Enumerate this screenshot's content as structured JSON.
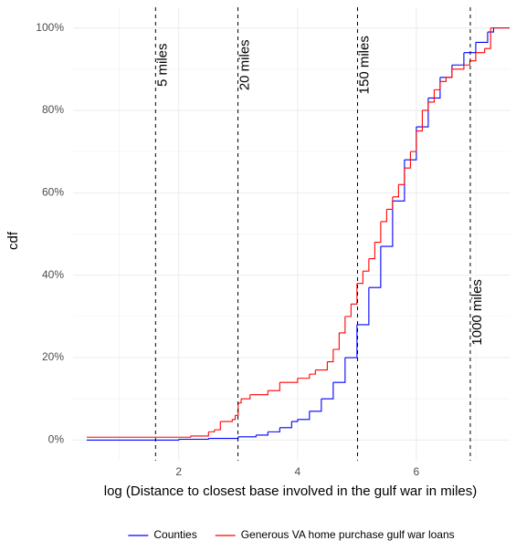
{
  "chart_data": {
    "type": "line",
    "step": true,
    "x_label": "log (Distance to closest base involved in the gulf war in miles)",
    "y_label": "cdf",
    "xlim": [
      0.22,
      7.57
    ],
    "ylim": [
      -0.05,
      1.05
    ],
    "xticks": [
      2,
      4,
      6
    ],
    "yticks": [
      {
        "value": 0,
        "label": "0%"
      },
      {
        "value": 0.2,
        "label": "20%"
      },
      {
        "value": 0.4,
        "label": "40%"
      },
      {
        "value": 0.6,
        "label": "60%"
      },
      {
        "value": 0.8,
        "label": "80%"
      },
      {
        "value": 1,
        "label": "100%"
      }
    ],
    "grid": true,
    "legend": "bottom",
    "annotations": [
      {
        "x": 1.609,
        "y": 0.91,
        "label": "5 miles"
      },
      {
        "x": 2.996,
        "y": 0.91,
        "label": "20 miles"
      },
      {
        "x": 5.01,
        "y": 0.91,
        "label": "150 miles"
      },
      {
        "x": 6.908,
        "y": 0.31,
        "label": "1000 miles"
      }
    ],
    "series": [
      {
        "name": "Counties",
        "color": "#0000ff",
        "x": [
          0.45,
          2.0,
          2.5,
          3.0,
          3.3,
          3.5,
          3.7,
          3.9,
          4.0,
          4.2,
          4.4,
          4.6,
          4.8,
          5.0,
          5.2,
          5.4,
          5.6,
          5.8,
          6.0,
          6.2,
          6.4,
          6.6,
          6.8,
          7.0,
          7.2,
          7.3,
          7.57
        ],
        "values": [
          0,
          0.002,
          0.004,
          0.008,
          0.012,
          0.02,
          0.03,
          0.045,
          0.05,
          0.07,
          0.1,
          0.14,
          0.2,
          0.28,
          0.37,
          0.47,
          0.58,
          0.68,
          0.76,
          0.83,
          0.88,
          0.91,
          0.94,
          0.965,
          0.99,
          1.0,
          1.0
        ]
      },
      {
        "name": "Generous VA home purchase gulf war loans",
        "color": "#ff0000",
        "x": [
          0.45,
          2.0,
          2.2,
          2.5,
          2.6,
          2.7,
          2.9,
          2.95,
          3.0,
          3.05,
          3.2,
          3.5,
          3.7,
          4.0,
          4.2,
          4.3,
          4.5,
          4.6,
          4.7,
          4.8,
          4.9,
          5.0,
          5.1,
          5.2,
          5.3,
          5.4,
          5.5,
          5.6,
          5.7,
          5.8,
          5.9,
          6.0,
          6.1,
          6.2,
          6.3,
          6.4,
          6.5,
          6.6,
          6.8,
          6.9,
          7.0,
          7.15,
          7.25,
          7.57
        ],
        "values": [
          0.007,
          0.007,
          0.01,
          0.02,
          0.025,
          0.045,
          0.05,
          0.06,
          0.09,
          0.1,
          0.11,
          0.12,
          0.14,
          0.15,
          0.16,
          0.17,
          0.19,
          0.22,
          0.26,
          0.3,
          0.33,
          0.38,
          0.41,
          0.44,
          0.48,
          0.53,
          0.56,
          0.59,
          0.62,
          0.66,
          0.7,
          0.75,
          0.8,
          0.82,
          0.85,
          0.87,
          0.88,
          0.9,
          0.91,
          0.92,
          0.94,
          0.95,
          1.0,
          1.0
        ]
      }
    ]
  }
}
